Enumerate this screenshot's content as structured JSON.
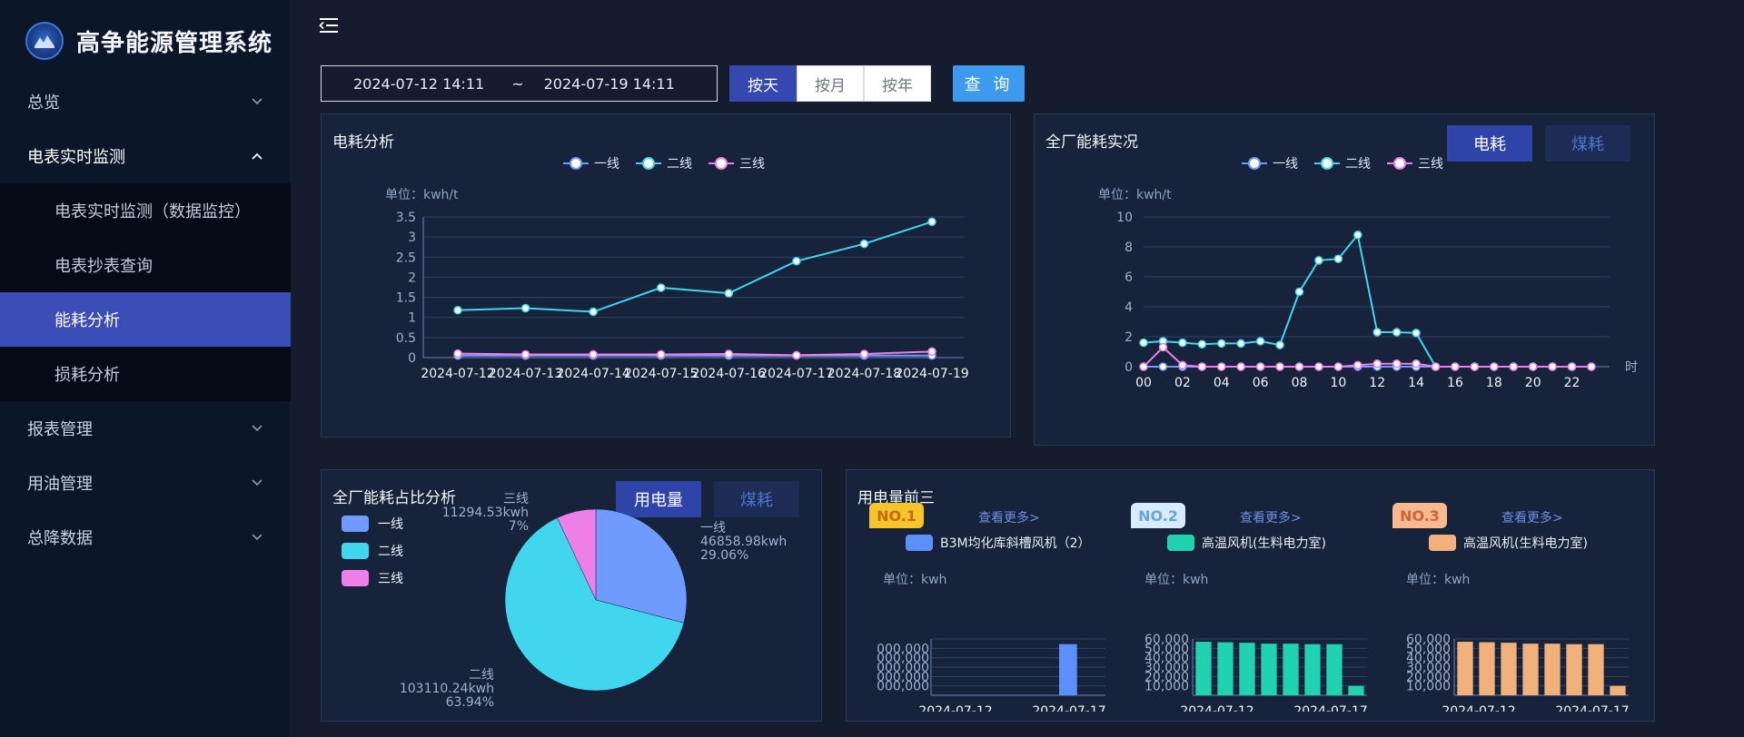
{
  "app": {
    "title": "高争能源管理系统"
  },
  "sidebar": {
    "items": [
      {
        "label": "总览",
        "expanded": false
      },
      {
        "label": "电表实时监测",
        "expanded": true
      },
      {
        "label": "报表管理",
        "expanded": false
      },
      {
        "label": "用油管理",
        "expanded": false
      },
      {
        "label": "总降数据",
        "expanded": false
      }
    ],
    "submenu": [
      {
        "label": "电表实时监测（数据监控）",
        "active": false
      },
      {
        "label": "电表抄表查询",
        "active": false
      },
      {
        "label": "能耗分析",
        "active": true
      },
      {
        "label": "损耗分析",
        "active": false
      }
    ]
  },
  "toolbar": {
    "date_start": "2024-07-12 14:11",
    "date_sep": "~",
    "date_end": "2024-07-19 14:11",
    "by_day": "按天",
    "by_month": "按月",
    "by_year": "按年",
    "query": "查 询"
  },
  "colors": {
    "line1": "#6f9bff",
    "line2": "#40d6ee",
    "line3": "#ee7fe8",
    "accent": "#3548b0",
    "top1": "#5b8ff9",
    "top2": "#1fd3b0",
    "top3": "#f2b07a"
  },
  "panels": {
    "consumption": {
      "title": "电耗分析",
      "unit": "单位：kwh/t"
    },
    "realtime": {
      "title": "全厂能耗实况",
      "unit": "单位：kwh/t",
      "tab_on": "电耗",
      "tab_off": "煤耗"
    },
    "share": {
      "title": "全厂能耗占比分析",
      "tab_on": "用电量",
      "tab_off": "煤耗"
    },
    "top3": {
      "title": "用电量前三",
      "more": "查看更多>",
      "unit": "单位：kwh",
      "cards": [
        {
          "rank": "NO.1",
          "device": "B3M均化库斜槽风机（2）"
        },
        {
          "rank": "NO.2",
          "device": "高温风机(生料电力室)"
        },
        {
          "rank": "NO.3",
          "device": "高温风机(生料电力室)"
        }
      ]
    }
  },
  "legend": [
    "一线",
    "二线",
    "三线"
  ],
  "chart_data": [
    {
      "type": "line",
      "title": "电耗分析",
      "ylabel": "单位：kwh/t",
      "categories": [
        "2024-07-12",
        "2024-07-13",
        "2024-07-14",
        "2024-07-15",
        "2024-07-16",
        "2024-07-17",
        "2024-07-18",
        "2024-07-19"
      ],
      "ylim": [
        0,
        3.5
      ],
      "yticks": [
        "0",
        "0.5",
        "1",
        "1.5",
        "2",
        "2.5",
        "3",
        "3.5"
      ],
      "series": [
        {
          "name": "一线",
          "values": [
            0.05,
            0.05,
            0.05,
            0.05,
            0.05,
            0.05,
            0.05,
            0.05
          ]
        },
        {
          "name": "二线",
          "values": [
            1.18,
            1.23,
            1.14,
            1.74,
            1.6,
            2.4,
            2.83,
            3.38
          ]
        },
        {
          "name": "三线",
          "values": [
            0.1,
            0.08,
            0.08,
            0.08,
            0.09,
            0.06,
            0.09,
            0.15
          ]
        }
      ],
      "legend": "top-center",
      "grid": true
    },
    {
      "type": "line",
      "title": "全厂能耗实况",
      "ylabel": "单位：kwh/t",
      "xlabel": "时",
      "categories": [
        "00",
        "01",
        "02",
        "03",
        "04",
        "05",
        "06",
        "07",
        "08",
        "09",
        "10",
        "11",
        "12",
        "13",
        "14",
        "15",
        "16",
        "17",
        "18",
        "19",
        "20",
        "21",
        "22",
        "23"
      ],
      "xticks": [
        "00",
        "02",
        "04",
        "06",
        "08",
        "10",
        "12",
        "14",
        "16",
        "18",
        "20",
        "22"
      ],
      "ylim": [
        0,
        10
      ],
      "yticks": [
        "0",
        "2",
        "4",
        "6",
        "8",
        "10"
      ],
      "series": [
        {
          "name": "一线",
          "values": [
            0,
            0,
            0,
            0,
            0,
            0,
            0,
            0,
            0,
            0,
            0,
            0,
            0,
            0,
            0,
            0,
            0,
            0,
            0,
            0,
            0,
            0,
            0,
            0
          ]
        },
        {
          "name": "二线",
          "values": [
            1.6,
            1.7,
            1.6,
            1.5,
            1.55,
            1.55,
            1.7,
            1.45,
            5,
            7.1,
            7.2,
            8.8,
            2.3,
            2.3,
            2.25,
            0,
            0,
            0,
            0,
            0,
            0,
            0,
            0,
            0
          ]
        },
        {
          "name": "三线",
          "values": [
            0,
            1.3,
            0.1,
            0,
            0,
            0,
            0,
            0,
            0,
            0,
            0,
            0.1,
            0.2,
            0.2,
            0.2,
            0,
            0,
            0,
            0,
            0,
            0,
            0,
            0,
            0
          ]
        }
      ],
      "legend": "top-center",
      "grid": true
    },
    {
      "type": "pie",
      "title": "全厂能耗占比分析",
      "slices": [
        {
          "name": "一线",
          "value": 46858.98,
          "label": "46858.98kwh",
          "percent": "29.06%"
        },
        {
          "name": "二线",
          "value": 103110.24,
          "label": "103110.24kwh",
          "percent": "63.94%"
        },
        {
          "name": "三线",
          "value": 11294.53,
          "label": "11294.53kwh",
          "percent": "7%"
        }
      ],
      "legend": "top-left"
    },
    {
      "type": "bar",
      "title": "NO.1",
      "ylabel": "单位：kwh",
      "xticks": [
        "2024-07-12",
        "2024-07-17"
      ],
      "values": [
        0,
        0,
        0,
        0,
        0,
        1,
        0
      ],
      "note": "y-axis tick labels truncated"
    },
    {
      "type": "bar",
      "title": "NO.2",
      "ylabel": "单位：kwh",
      "xticks": [
        "2024-07-12",
        "2024-07-17"
      ],
      "yticks": [
        "10,000",
        "20,000",
        "30,000",
        "40,000",
        "50,000",
        "60,000"
      ],
      "ylim": [
        0,
        60000
      ],
      "values": [
        57000,
        56500,
        56000,
        55000,
        55000,
        54500,
        54500,
        10000
      ]
    },
    {
      "type": "bar",
      "title": "NO.3",
      "ylabel": "单位：kwh",
      "xticks": [
        "2024-07-12",
        "2024-07-17"
      ],
      "yticks": [
        "10,000",
        "20,000",
        "30,000",
        "40,000",
        "50,000",
        "60,000"
      ],
      "ylim": [
        0,
        60000
      ],
      "values": [
        57000,
        56500,
        56000,
        55000,
        55000,
        54500,
        54500,
        10000
      ]
    }
  ]
}
